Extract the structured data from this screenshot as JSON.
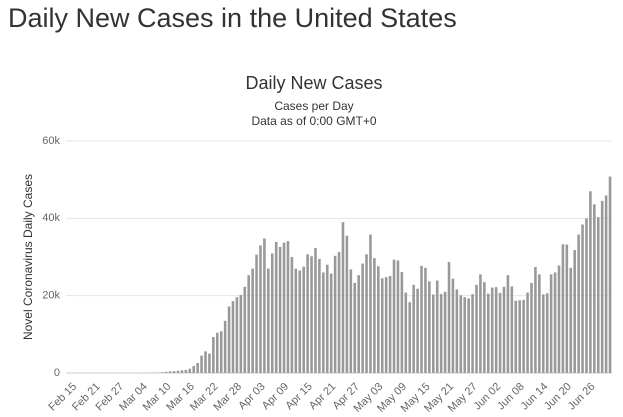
{
  "page_title": "Daily New Cases in the United States",
  "chart_data": {
    "type": "bar",
    "title": "Daily New Cases",
    "subtitle": "Cases per Day",
    "note": "Data as of 0:00 GMT+0",
    "y_label": "Novel Coronavirus Daily Cases",
    "color": "#999999",
    "grid": true,
    "ylim": [
      0,
      60000
    ],
    "yticks": [
      0,
      {
        "value": 20000,
        "label": "20k"
      },
      {
        "value": 40000,
        "label": "40k"
      },
      {
        "value": 60000,
        "label": "60k"
      }
    ],
    "categories": [
      "Feb 15",
      null,
      null,
      null,
      null,
      null,
      "Feb 21",
      null,
      null,
      null,
      null,
      null,
      "Feb 27",
      null,
      null,
      null,
      null,
      null,
      "Mar 04",
      null,
      null,
      null,
      null,
      null,
      "Mar 10",
      null,
      null,
      null,
      null,
      null,
      "Mar 16",
      null,
      null,
      null,
      null,
      null,
      "Mar 22",
      null,
      null,
      null,
      null,
      null,
      "Mar 28",
      null,
      null,
      null,
      null,
      null,
      "Apr 03",
      null,
      null,
      null,
      null,
      null,
      "Apr 09",
      null,
      null,
      null,
      null,
      null,
      "Apr 15",
      null,
      null,
      null,
      null,
      null,
      "Apr 21",
      null,
      null,
      null,
      null,
      null,
      "Apr 27",
      null,
      null,
      null,
      null,
      null,
      "May 03",
      null,
      null,
      null,
      null,
      null,
      "May 09",
      null,
      null,
      null,
      null,
      null,
      "May 15",
      null,
      null,
      null,
      null,
      null,
      "May 21",
      null,
      null,
      null,
      null,
      null,
      "May 27",
      null,
      null,
      null,
      null,
      null,
      "Jun 02",
      null,
      null,
      null,
      null,
      null,
      "Jun 08",
      null,
      null,
      null,
      null,
      null,
      "Jun 14",
      null,
      null,
      null,
      null,
      null,
      "Jun 20",
      null,
      null,
      null,
      null,
      null,
      "Jun 26",
      null,
      null,
      null,
      null,
      null
    ],
    "values": [
      0,
      0,
      0,
      0,
      0,
      0,
      0,
      0,
      0,
      0,
      0,
      0,
      0,
      0,
      0,
      3,
      20,
      24,
      30,
      54,
      60,
      100,
      110,
      180,
      290,
      420,
      480,
      580,
      700,
      780,
      1100,
      1800,
      2600,
      4500,
      5600,
      5000,
      9300,
      10400,
      10800,
      13500,
      17200,
      18600,
      19600,
      20200,
      22300,
      25300,
      27000,
      30600,
      33000,
      34800,
      27000,
      30900,
      33900,
      32600,
      33700,
      34100,
      30000,
      27000,
      26500,
      27500,
      30700,
      30200,
      32300,
      29500,
      26000,
      28000,
      25700,
      30300,
      31300,
      39000,
      35500,
      26800,
      23300,
      25300,
      28300,
      30700,
      35800,
      29700,
      27600,
      24500,
      24800,
      25100,
      29300,
      29100,
      26100,
      20800,
      18300,
      22800,
      21800,
      27700,
      27200,
      23700,
      20300,
      23900,
      20400,
      21000,
      28700,
      24400,
      21600,
      20100,
      19600,
      19300,
      20400,
      22800,
      25500,
      23500,
      20500,
      22100,
      22200,
      20700,
      22300,
      25300,
      22400,
      18700,
      18800,
      18900,
      20800,
      23300,
      27400,
      25500,
      20300,
      20600,
      25500,
      26000,
      27800,
      33300,
      33200,
      27200,
      31800,
      35800,
      38400,
      40000,
      47000,
      43600,
      40300,
      44500,
      45900,
      50800
    ]
  }
}
